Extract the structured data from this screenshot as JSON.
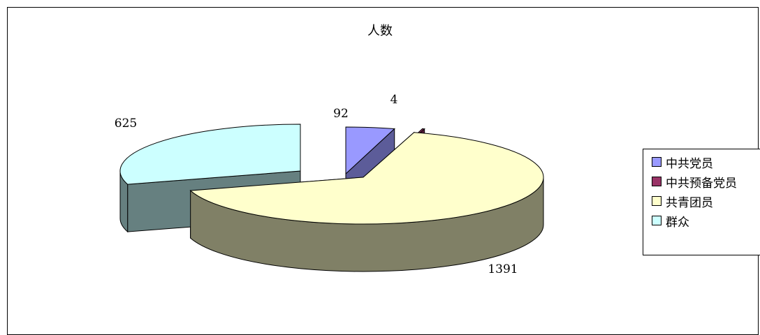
{
  "chart_data": {
    "type": "pie",
    "title": "人数",
    "legend_position": "right",
    "categories": [
      "中共党员",
      "中共预备党员",
      "共青团员",
      "群众"
    ],
    "values": [
      92,
      4,
      1391,
      625
    ],
    "data_labels": [
      "92",
      "4",
      "1391",
      "625"
    ],
    "colors": {
      "top": [
        "#9999ff",
        "#993366",
        "#ffffcc",
        "#ccffff"
      ],
      "side": [
        "#5c5c99",
        "#5c1f3d",
        "#808066",
        "#668080"
      ]
    }
  }
}
